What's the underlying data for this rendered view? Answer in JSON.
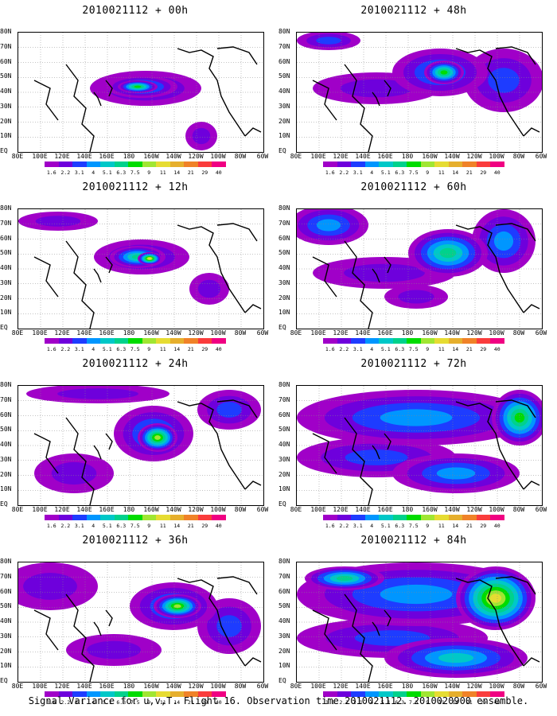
{
  "panels": [
    {
      "title": "2010021112 + 00h"
    },
    {
      "title": "2010021112 + 48h"
    },
    {
      "title": "2010021112 + 12h"
    },
    {
      "title": "2010021112 + 60h"
    },
    {
      "title": "2010021112 + 24h"
    },
    {
      "title": "2010021112 + 72h"
    },
    {
      "title": "2010021112 + 36h"
    },
    {
      "title": "2010021112 + 84h"
    }
  ],
  "lat_labels": [
    "80N",
    "70N",
    "60N",
    "50N",
    "40N",
    "30N",
    "20N",
    "10N",
    "EQ"
  ],
  "lon_labels": [
    "80E",
    "100E",
    "120E",
    "140E",
    "160E",
    "180",
    "160W",
    "140W",
    "120W",
    "100W",
    "80W",
    "60W"
  ],
  "colorbar": {
    "labels": [
      "1.6",
      "2.2",
      "3.1",
      "4",
      "5.1",
      "6.3",
      "7.5",
      "9",
      "11",
      "14",
      "21",
      "29",
      "40"
    ],
    "colors": [
      "#a000c8",
      "#6e00dc",
      "#1e3cff",
      "#0096ff",
      "#00c8c8",
      "#00d28c",
      "#00dc00",
      "#a0e632",
      "#e6dc32",
      "#e6af2d",
      "#f08228",
      "#fa3c3c",
      "#f00082"
    ]
  },
  "footer": "Signal Variance for u,v,T. Flight 16. Observation time 2010021112. 2010020900 ensemble."
}
